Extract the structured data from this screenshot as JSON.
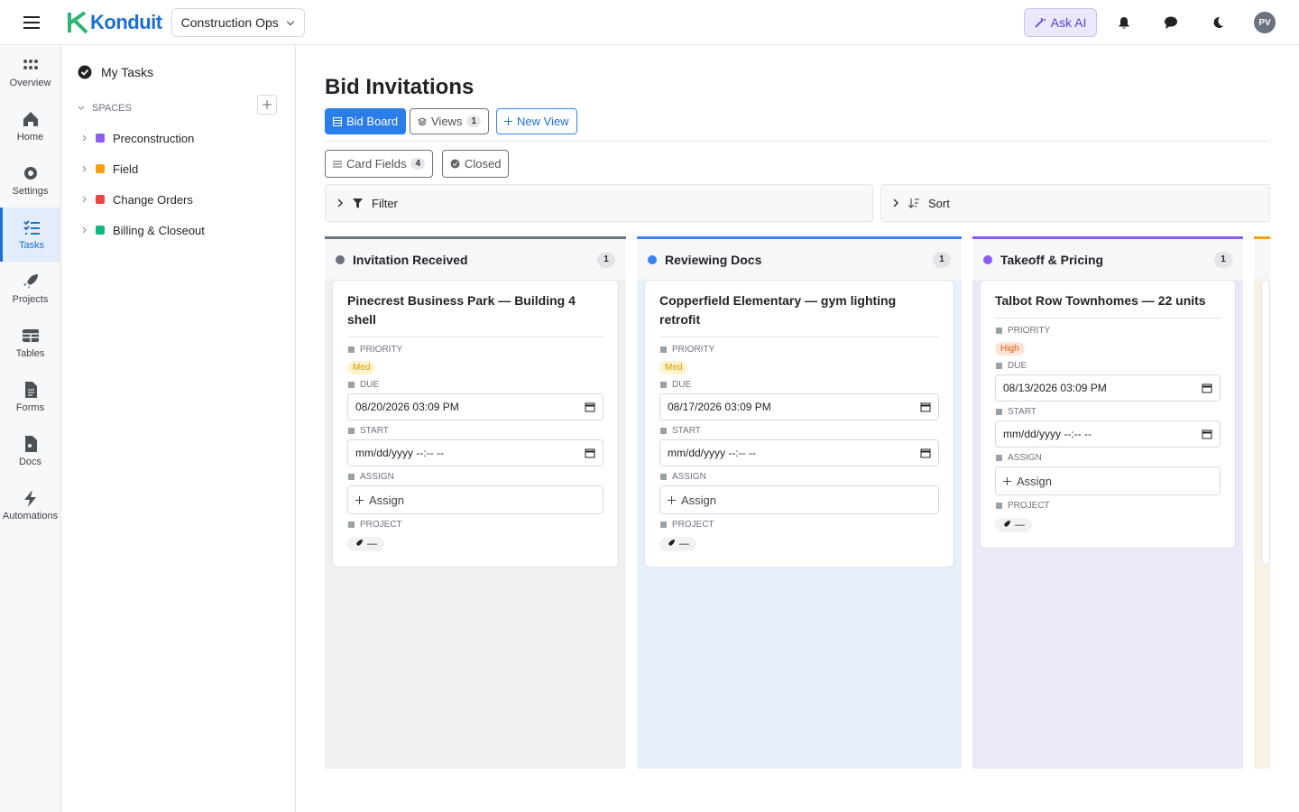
{
  "header": {
    "brand": "Konduit",
    "workspace": "Construction Ops",
    "ask_ai": "Ask AI",
    "avatar": "PV"
  },
  "rail": {
    "items": [
      "Overview",
      "Home",
      "Settings",
      "Tasks",
      "Projects",
      "Tables",
      "Forms",
      "Docs",
      "Automations"
    ],
    "active": 3
  },
  "sidebar": {
    "my_tasks": "My Tasks",
    "spaces_label": "SPACES",
    "spaces": [
      {
        "name": "Preconstruction",
        "color": "#8b5cf6"
      },
      {
        "name": "Field",
        "color": "#f59e0b"
      },
      {
        "name": "Change Orders",
        "color": "#ef4444"
      },
      {
        "name": "Billing & Closeout",
        "color": "#10b981"
      }
    ]
  },
  "main": {
    "title": "Bid Invitations",
    "board_tab": "Bid Board",
    "views_tab": "Views",
    "views_count": 1,
    "new_view": "New View",
    "card_fields": "Card Fields",
    "card_fields_count": 4,
    "closed": "Closed",
    "filter": "Filter",
    "sort": "Sort"
  },
  "field_labels": {
    "priority": "PRIORITY",
    "due": "DUE",
    "start": "START",
    "assign": "ASSIGN",
    "project": "PROJECT",
    "assign_placeholder": "Assign",
    "date_placeholder": "mm/dd/yyyy --:-- --"
  },
  "columns": [
    {
      "name": "Invitation Received",
      "count": 1,
      "color": "#6b7280",
      "background": "#eef0f2",
      "cards": [
        {
          "title": "Pinecrest Business Park — Building 4 shell",
          "priority": "Med",
          "priority_color": "#d99a00",
          "priority_bg": "#fdf3d0",
          "due": "08/20/2026 03:09  PM",
          "project": "—"
        }
      ]
    },
    {
      "name": "Reviewing Docs",
      "count": 1,
      "color": "#3b82f6",
      "background": "#e8f0fb",
      "cards": [
        {
          "title": "Copperfield Elementary — gym lighting retrofit",
          "priority": "Med",
          "priority_color": "#d99a00",
          "priority_bg": "#fdf3d0",
          "due": "08/17/2026 03:09  PM",
          "project": "—"
        }
      ]
    },
    {
      "name": "Takeoff & Pricing",
      "count": 1,
      "color": "#8b5cf6",
      "background": "#ede8f8",
      "cards": [
        {
          "title": "Talbot Row Townhomes — 22 units",
          "priority": "High",
          "priority_color": "#e8590c",
          "priority_bg": "#fde4d8",
          "due": "08/13/2026 03:09  PM",
          "project": "—"
        }
      ]
    }
  ]
}
